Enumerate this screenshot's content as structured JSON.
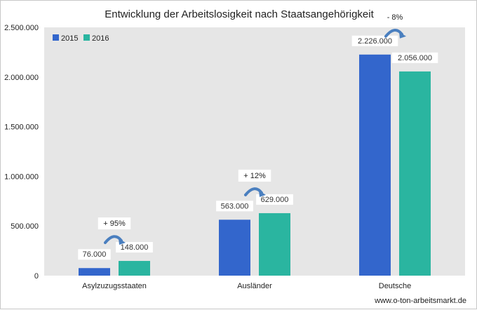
{
  "chart_data": {
    "type": "bar",
    "title": "Entwicklung der Arbeitslosigkeit nach Staatsangehörigkeit",
    "categories": [
      "Asylzuzugsstaaten",
      "Ausländer",
      "Deutsche"
    ],
    "series": [
      {
        "name": "2015",
        "values": [
          76000,
          563000,
          2226000
        ],
        "labels": [
          "76.000",
          "563.000",
          "2.226.000"
        ],
        "color": "#3366cc"
      },
      {
        "name": "2016",
        "values": [
          148000,
          629000,
          2056000
        ],
        "labels": [
          "148.000",
          "629.000",
          "2.056.000"
        ],
        "color": "#2ab5a0"
      }
    ],
    "ylim": [
      0,
      2500000
    ],
    "yticks": [
      {
        "value": 0,
        "label": "0"
      },
      {
        "value": 500000,
        "label": "500.000"
      },
      {
        "value": 1000000,
        "label": "1.000.000"
      },
      {
        "value": 1500000,
        "label": "1.500.000"
      },
      {
        "value": 2000000,
        "label": "2.000.000"
      },
      {
        "value": 2500000,
        "label": "2.500.000"
      }
    ],
    "annotations": [
      "+ 95%",
      "+ 12%",
      "- 8%"
    ],
    "grid": false,
    "legend_position": "top-left",
    "plot_background": "#e6e6e6",
    "arrow_color": "#4a7fbf",
    "xlabel": "",
    "ylabel": ""
  },
  "source": "www.o-ton-arbeitsmarkt.de"
}
